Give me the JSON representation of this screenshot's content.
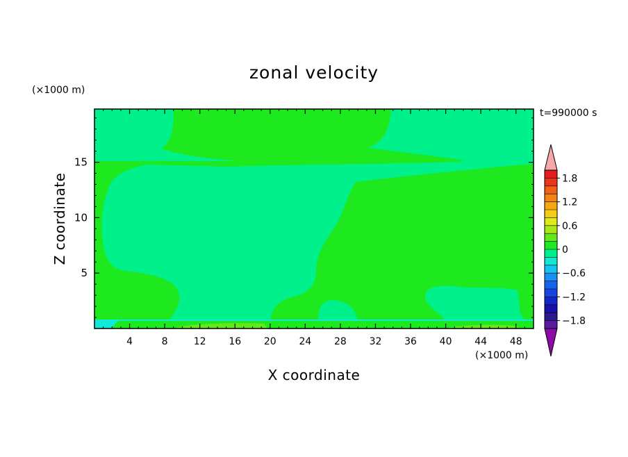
{
  "chart_data": {
    "type": "heatmap",
    "title": "zonal velocity",
    "xlabel": "X coordinate",
    "ylabel": "Z coordinate",
    "x_unit": "(×1000 m)",
    "y_unit": "(×1000 m)",
    "time_label": "t=990000 s",
    "xlim": [
      0,
      50
    ],
    "ylim": [
      0,
      19.8
    ],
    "x_ticks": [
      4,
      8,
      12,
      16,
      20,
      24,
      28,
      32,
      36,
      40,
      44,
      48
    ],
    "y_ticks": [
      5,
      10,
      15
    ],
    "colorbar": {
      "levels": [
        -2.0,
        -1.8,
        -1.6,
        -1.4,
        -1.2,
        -1.0,
        -0.8,
        -0.6,
        -0.4,
        -0.2,
        0,
        0.2,
        0.4,
        0.6,
        0.8,
        1.0,
        1.2,
        1.4,
        1.6,
        1.8,
        2.0
      ],
      "colors": [
        "#5a1aa0",
        "#2a1890",
        "#1810a8",
        "#1028c8",
        "#1844e0",
        "#1464ee",
        "#1a90f4",
        "#14c4f0",
        "#10e8d8",
        "#00f08c",
        "#1ee81e",
        "#64e81a",
        "#a8e814",
        "#e0ea14",
        "#f4cc12",
        "#f4a812",
        "#f48414",
        "#f06018",
        "#ec3418",
        "#e41c1c"
      ],
      "under_color": "#8c0aa8",
      "over_color": "#f4a8a8",
      "labels": [
        "1.8",
        "1.2",
        "0.6",
        "0",
        "−0.6",
        "−1.2",
        "−1.8"
      ],
      "label_values": [
        1.8,
        1.2,
        0.6,
        0,
        -0.6,
        -1.2,
        -1.8
      ]
    },
    "colors": {
      "background_field": "#00f08c",
      "positive_field": "#1ee81e",
      "near_surface": "#64e81a",
      "surface_cyan": "#10e8d8"
    }
  }
}
